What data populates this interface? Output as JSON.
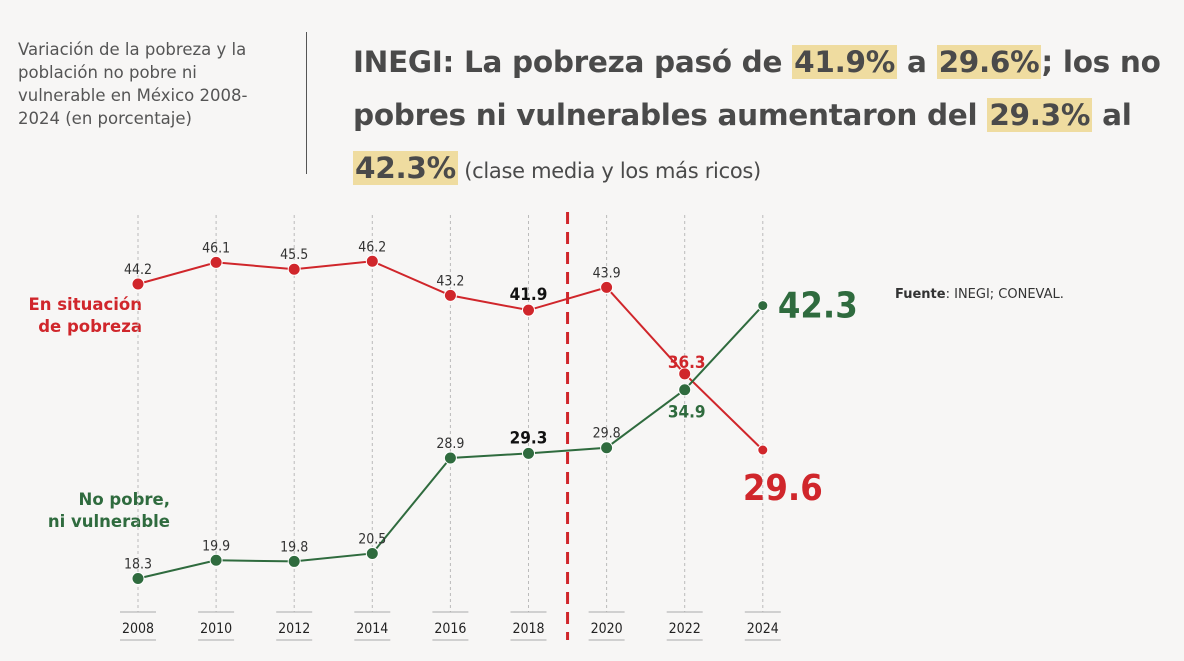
{
  "subtitle": "Variación de la pobreza y la población no pobre ni vulnerable en México 2008-2024 (en porcentaje)",
  "headline": {
    "p1": "INEGI: La pobreza pasó de ",
    "h1": "41.9%",
    "p2": " a ",
    "h2": "29.6%",
    "p3": "; los no pobres ni vulnerables aumentaron del ",
    "h3": "29.3%",
    "p4": " al ",
    "h4": "42.3%",
    "p5": " (clase media y los más ricos)"
  },
  "source": {
    "label": "Fuente",
    "text": ": INEGI; CONEVAL."
  },
  "colors": {
    "poverty": "#d0262b",
    "nonpoor": "#2f6b3e",
    "highlight": "#efdca0",
    "divider": "#d0262b"
  },
  "chart_data": {
    "type": "line",
    "categories": [
      "2008",
      "2010",
      "2012",
      "2014",
      "2016",
      "2018",
      "2020",
      "2022",
      "2024"
    ],
    "series": [
      {
        "name": "En situación de pobreza",
        "color": "#d0262b",
        "values": [
          44.2,
          46.1,
          45.5,
          46.2,
          43.2,
          41.9,
          43.9,
          36.3,
          29.6
        ]
      },
      {
        "name": "No pobre, ni vulnerable",
        "color": "#2f6b3e",
        "values": [
          18.3,
          19.9,
          19.8,
          20.5,
          28.9,
          29.3,
          29.8,
          34.9,
          42.3
        ]
      }
    ],
    "data_labels": {
      "poverty": [
        "44.2",
        "46.1",
        "45.5",
        "46.2",
        "43.2",
        "41.9",
        "43.9",
        "36.3",
        "29.6"
      ],
      "nonpoor": [
        "18.3",
        "19.9",
        "19.8",
        "20.5",
        "28.9",
        "29.3",
        "29.8",
        "34.9",
        "42.3"
      ]
    },
    "series_labels": {
      "poverty": [
        "En situación",
        "de pobreza"
      ],
      "nonpoor": [
        "No pobre,",
        "ni vulnerable"
      ]
    },
    "reference_line": "between 2018 and 2020, dashed",
    "grid": "vertical dashed per year",
    "legend": "inline labels left"
  }
}
